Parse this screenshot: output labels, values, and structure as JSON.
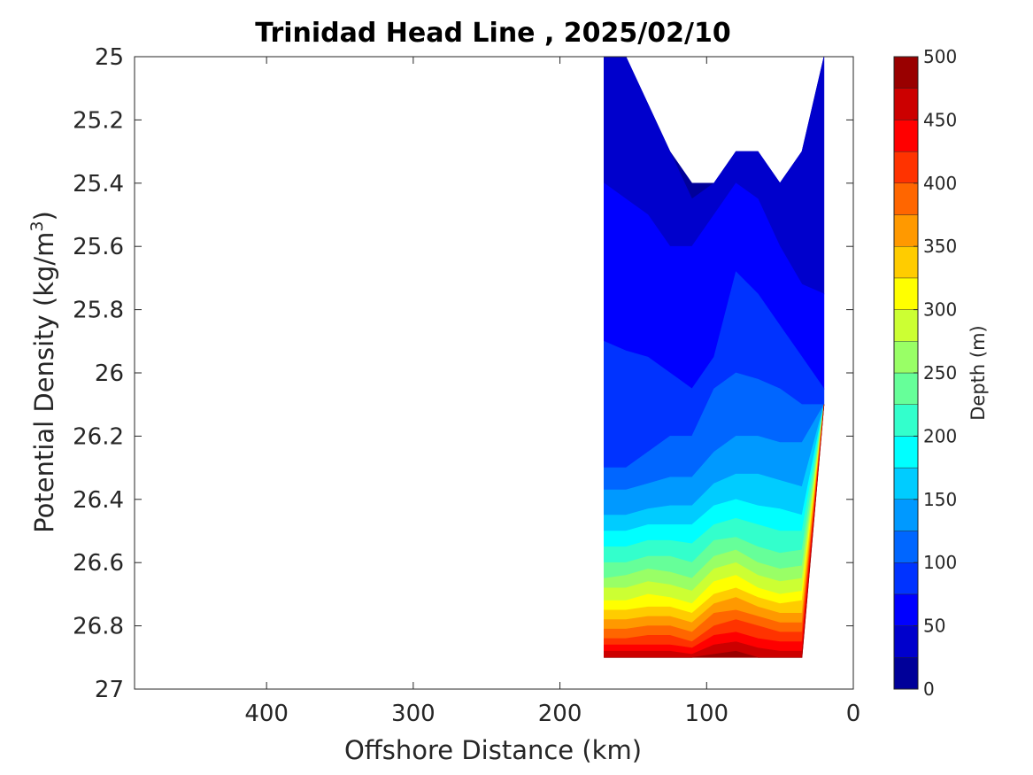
{
  "chart_data": {
    "type": "filled-contour",
    "title": "Trinidad Head Line , 2025/02/10",
    "xlabel": "Offshore Distance (km)",
    "ylabel_main": "Potential Density (kg/m",
    "ylabel_sup": "3",
    "ylabel_close": ")",
    "xlim": [
      490,
      0
    ],
    "ylim": [
      25,
      27
    ],
    "y_reversed": true,
    "x_ticks": [
      "400",
      "300",
      "200",
      "100",
      "0"
    ],
    "y_ticks": [
      "25",
      "25.2",
      "25.4",
      "25.6",
      "25.8",
      "26",
      "26.2",
      "26.4",
      "26.6",
      "26.8",
      "27"
    ],
    "colorbar": {
      "label": "Depth (m)",
      "range": [
        0,
        500
      ],
      "step": 25,
      "ticks": [
        "0",
        "50",
        "100",
        "150",
        "200",
        "250",
        "300",
        "350",
        "400",
        "450",
        "500"
      ],
      "colormap": "jet"
    },
    "stations_km": [
      170,
      155,
      140,
      125,
      110,
      95,
      80,
      65,
      50,
      35,
      20
    ],
    "surface_density_top": [
      25.0,
      25.0,
      25.15,
      25.3,
      25.4,
      25.4,
      25.3,
      25.3,
      25.4,
      25.3,
      25.0
    ],
    "bottom_density": [
      26.9,
      26.9,
      26.9,
      26.9,
      26.9,
      26.9,
      26.9,
      26.9,
      26.9,
      26.9,
      26.1
    ],
    "depth_contours": [
      {
        "level": 25,
        "sigma": [
          25.0,
          25.0,
          25.1,
          25.25,
          25.45,
          25.4,
          25.3,
          25.3,
          25.3,
          25.15,
          25.0
        ]
      },
      {
        "level": 50,
        "sigma": [
          25.4,
          25.45,
          25.5,
          25.6,
          25.6,
          25.5,
          25.4,
          25.45,
          25.6,
          25.72,
          25.75
        ]
      },
      {
        "level": 75,
        "sigma": [
          25.9,
          25.93,
          25.95,
          26.0,
          26.05,
          25.95,
          25.68,
          25.75,
          25.85,
          25.95,
          26.05
        ]
      },
      {
        "level": 100,
        "sigma": [
          26.3,
          26.3,
          26.25,
          26.2,
          26.2,
          26.05,
          26.0,
          26.02,
          26.05,
          26.1,
          26.15
        ]
      },
      {
        "level": 125,
        "sigma": [
          26.37,
          26.37,
          26.35,
          26.33,
          26.33,
          26.25,
          26.2,
          26.2,
          26.22,
          26.22,
          26.2
        ]
      },
      {
        "level": 150,
        "sigma": [
          26.45,
          26.45,
          26.43,
          26.42,
          26.42,
          26.35,
          26.32,
          26.32,
          26.34,
          26.36,
          26.36
        ]
      },
      {
        "level": 175,
        "sigma": [
          26.5,
          26.5,
          26.48,
          26.48,
          26.48,
          26.42,
          26.4,
          26.42,
          26.43,
          26.45,
          26.45
        ]
      },
      {
        "level": 200,
        "sigma": [
          26.55,
          26.55,
          26.53,
          26.53,
          26.54,
          26.48,
          26.46,
          26.48,
          26.5,
          26.5,
          26.5
        ]
      },
      {
        "level": 225,
        "sigma": [
          26.6,
          26.6,
          26.58,
          26.58,
          26.6,
          26.53,
          26.52,
          26.55,
          26.57,
          26.56,
          26.56
        ]
      },
      {
        "level": 250,
        "sigma": [
          26.65,
          26.64,
          26.62,
          26.63,
          26.65,
          26.58,
          26.56,
          26.6,
          26.62,
          26.61,
          26.61
        ]
      },
      {
        "level": 275,
        "sigma": [
          26.68,
          26.68,
          26.66,
          26.67,
          26.69,
          26.62,
          26.6,
          26.64,
          26.66,
          26.65,
          26.65
        ]
      },
      {
        "level": 300,
        "sigma": [
          26.72,
          26.72,
          26.7,
          26.71,
          26.73,
          26.66,
          26.64,
          26.68,
          26.7,
          26.69,
          26.69
        ]
      },
      {
        "level": 325,
        "sigma": [
          26.75,
          26.75,
          26.74,
          26.74,
          26.76,
          26.7,
          26.68,
          26.71,
          26.73,
          26.72,
          26.72
        ]
      },
      {
        "level": 350,
        "sigma": [
          26.78,
          26.78,
          26.77,
          26.77,
          26.79,
          26.73,
          26.71,
          26.74,
          26.76,
          26.76,
          26.76
        ]
      },
      {
        "level": 375,
        "sigma": [
          26.81,
          26.81,
          26.8,
          26.8,
          26.82,
          26.76,
          26.75,
          26.77,
          26.79,
          26.79,
          26.79
        ]
      },
      {
        "level": 400,
        "sigma": [
          26.84,
          26.84,
          26.83,
          26.83,
          26.85,
          26.8,
          26.78,
          26.8,
          26.82,
          26.82,
          26.82
        ]
      },
      {
        "level": 425,
        "sigma": [
          26.86,
          26.86,
          26.86,
          26.86,
          26.87,
          26.83,
          26.82,
          26.84,
          26.85,
          26.85,
          26.85
        ]
      },
      {
        "level": 450,
        "sigma": [
          26.88,
          26.88,
          26.88,
          26.88,
          26.89,
          26.86,
          26.85,
          26.87,
          26.88,
          26.88,
          26.88
        ]
      },
      {
        "level": 475,
        "sigma": [
          26.9,
          26.9,
          26.9,
          26.9,
          26.9,
          26.89,
          26.88,
          26.9,
          26.9,
          26.9,
          26.9
        ]
      }
    ]
  }
}
